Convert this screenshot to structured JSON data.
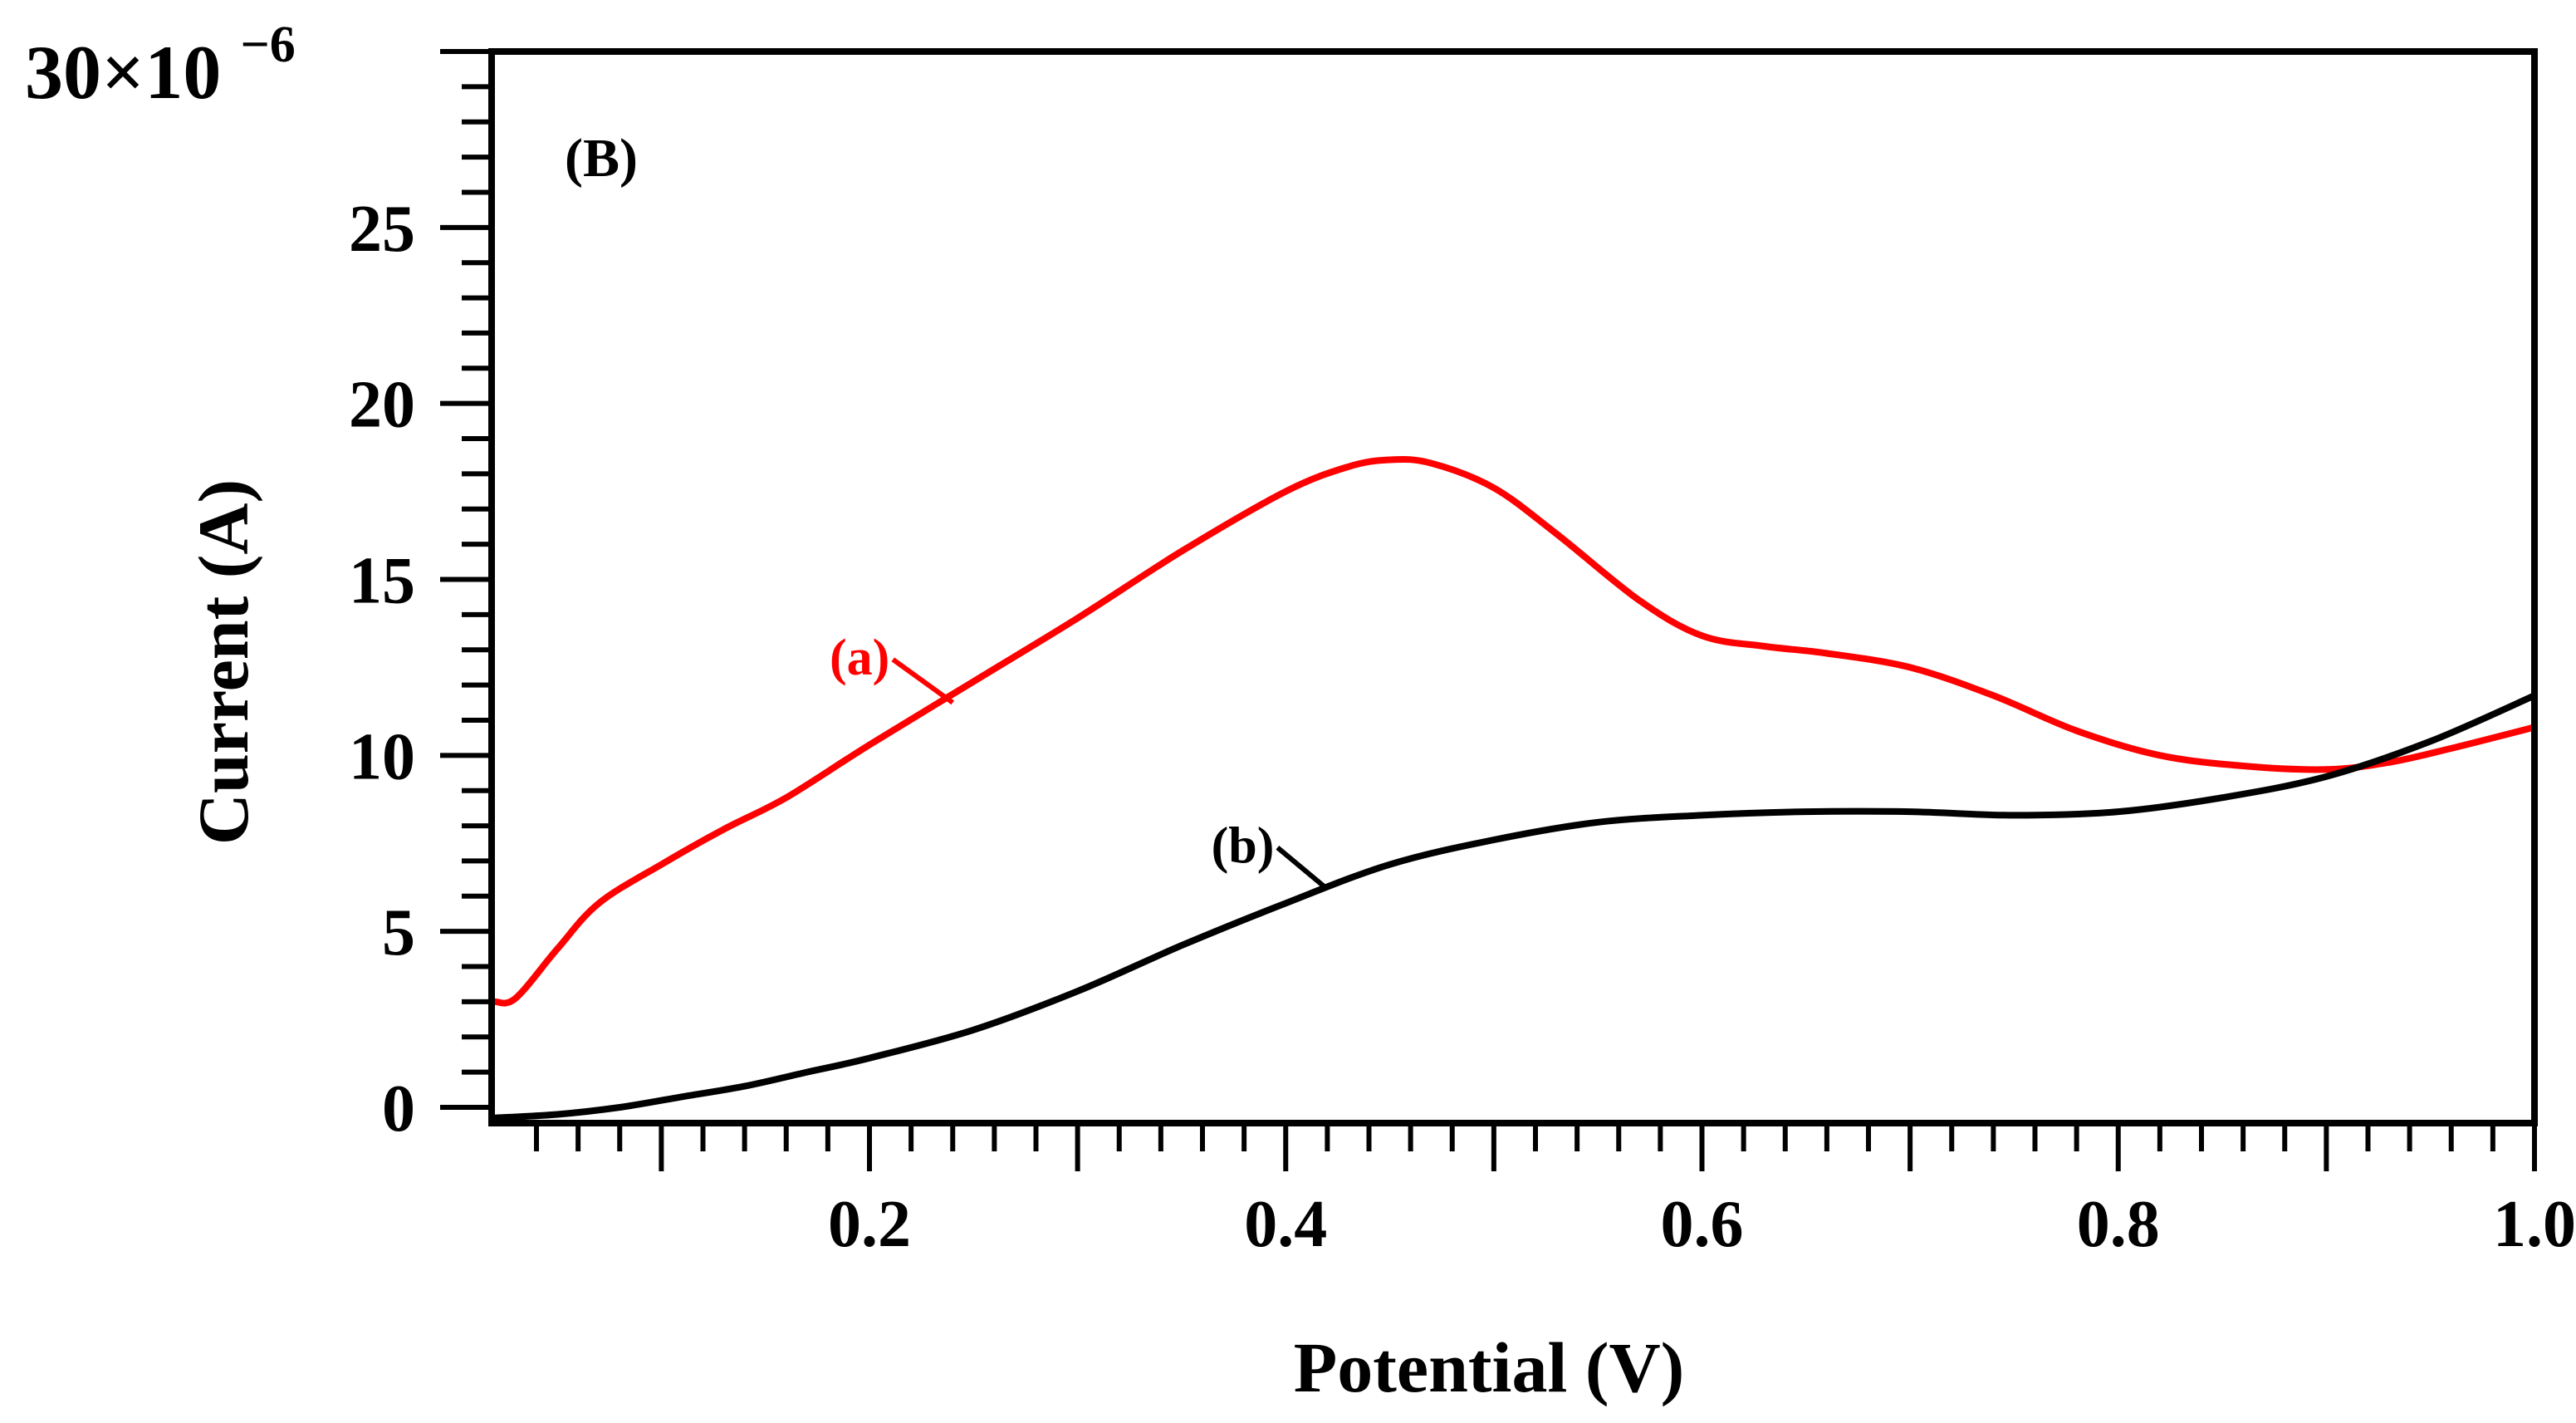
{
  "chart_data": {
    "type": "line",
    "panel_label": "(B)",
    "xlabel": "Potential (V)",
    "ylabel": "Current (A)",
    "y_scale_label": "30×10",
    "y_scale_exponent": "−6",
    "xlim": [
      0.03,
      1.0
    ],
    "ylim": [
      -0.5,
      30
    ],
    "x_ticks": [
      {
        "value": 0.2,
        "label": "0.2"
      },
      {
        "value": 0.4,
        "label": "0.4"
      },
      {
        "value": 0.6,
        "label": "0.6"
      },
      {
        "value": 0.8,
        "label": "0.8"
      },
      {
        "value": 1.0,
        "label": "1.0"
      }
    ],
    "y_ticks": [
      {
        "value": 0,
        "label": "0"
      },
      {
        "value": 5,
        "label": "5"
      },
      {
        "value": 10,
        "label": "10"
      },
      {
        "value": 15,
        "label": "15"
      },
      {
        "value": 20,
        "label": "20"
      },
      {
        "value": 25,
        "label": "25"
      }
    ],
    "colors": {
      "a": "#ff0000",
      "b": "#000000",
      "axis": "#000000"
    },
    "series": [
      {
        "name": "(a)",
        "color": "#ff0000",
        "label_at": [
          0.24,
          11.5
        ],
        "x": [
          0.02,
          0.03,
          0.05,
          0.07,
          0.1,
          0.13,
          0.16,
          0.2,
          0.25,
          0.3,
          0.35,
          0.4,
          0.43,
          0.45,
          0.47,
          0.5,
          0.53,
          0.57,
          0.6,
          0.63,
          0.66,
          0.7,
          0.74,
          0.78,
          0.82,
          0.86,
          0.9,
          0.93,
          0.96,
          1.0
        ],
        "y": [
          3.0,
          3.1,
          4.5,
          5.8,
          6.9,
          7.9,
          8.8,
          10.3,
          12.1,
          13.9,
          15.8,
          17.5,
          18.2,
          18.4,
          18.3,
          17.6,
          16.3,
          14.4,
          13.4,
          13.1,
          12.9,
          12.5,
          11.7,
          10.7,
          10.0,
          9.7,
          9.6,
          9.8,
          10.2,
          10.8
        ]
      },
      {
        "name": "(b)",
        "color": "#000000",
        "label_at": [
          0.42,
          6.2
        ],
        "x": [
          0.02,
          0.05,
          0.08,
          0.11,
          0.14,
          0.17,
          0.2,
          0.25,
          0.3,
          0.35,
          0.4,
          0.45,
          0.5,
          0.55,
          0.6,
          0.65,
          0.7,
          0.75,
          0.8,
          0.85,
          0.9,
          0.95,
          1.0
        ],
        "y": [
          -0.3,
          -0.2,
          0.0,
          0.3,
          0.6,
          1.0,
          1.4,
          2.2,
          3.3,
          4.6,
          5.8,
          6.9,
          7.6,
          8.1,
          8.3,
          8.4,
          8.4,
          8.3,
          8.4,
          8.8,
          9.4,
          10.4,
          11.7
        ]
      }
    ]
  }
}
